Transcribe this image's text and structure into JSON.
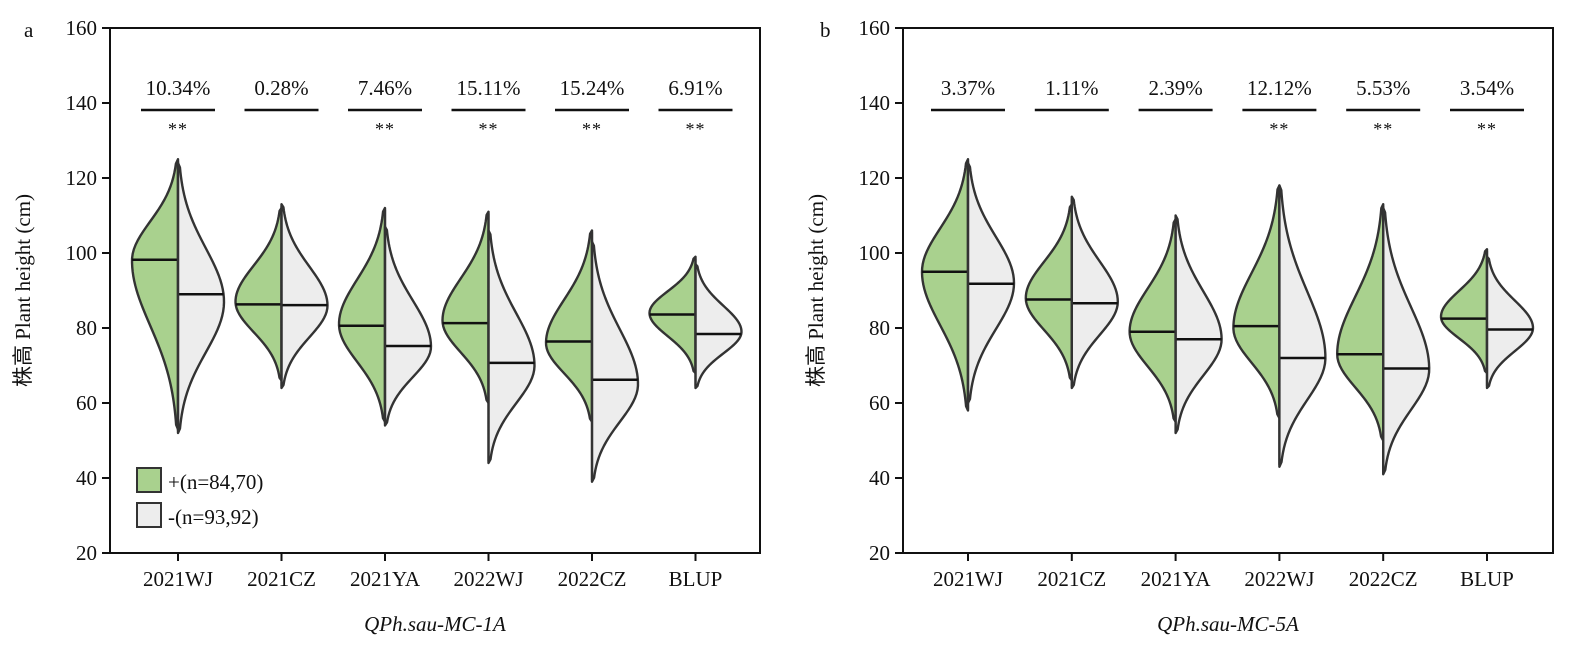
{
  "colors": {
    "plus_fill": "#a9d18e",
    "minus_fill": "#ededed",
    "outline": "#333333",
    "axis": "#111111"
  },
  "legend": {
    "plus_label": "+(n=84,70)",
    "minus_label": "-(n=93,92)"
  },
  "chart_data": [
    {
      "type": "violin",
      "panel": "a",
      "xlabel": "QPh.sau-MC-1A",
      "ylabel": "株高 Plant height (cm)",
      "ylim": [
        20,
        160
      ],
      "yticks": [
        "20",
        "40",
        "60",
        "80",
        "100",
        "120",
        "140",
        "160"
      ],
      "grid": false,
      "legend_position": "bottom-left",
      "series": [
        {
          "name": "+",
          "color": "#a9d18e"
        },
        {
          "name": "-",
          "color": "#ededed"
        }
      ],
      "categories": [
        {
          "label": "2021WJ",
          "pct": "10.34%",
          "sig": "**",
          "plus": {
            "min": 53,
            "max": 125,
            "mode": 98,
            "median": 98.2
          },
          "minus": {
            "min": 52,
            "max": 124,
            "mode": 87,
            "median": 89
          }
        },
        {
          "label": "2021CZ",
          "pct": "0.28%",
          "sig": "",
          "plus": {
            "min": 66,
            "max": 112,
            "mode": 87,
            "median": 86.3
          },
          "minus": {
            "min": 64,
            "max": 113,
            "mode": 86,
            "median": 86.1
          }
        },
        {
          "label": "2021YA",
          "pct": "7.46%",
          "sig": "**",
          "plus": {
            "min": 55,
            "max": 112,
            "mode": 81,
            "median": 80.6
          },
          "minus": {
            "min": 54,
            "max": 107,
            "mode": 75,
            "median": 75.2
          }
        },
        {
          "label": "2022WJ",
          "pct": "15.11%",
          "sig": "**",
          "plus": {
            "min": 60,
            "max": 111,
            "mode": 82,
            "median": 81.3
          },
          "minus": {
            "min": 44,
            "max": 106,
            "mode": 70,
            "median": 70.7
          }
        },
        {
          "label": "2022CZ",
          "pct": "15.24%",
          "sig": "**",
          "plus": {
            "min": 55,
            "max": 106,
            "mode": 76,
            "median": 76.4
          },
          "minus": {
            "min": 39,
            "max": 103,
            "mode": 65,
            "median": 66.2
          }
        },
        {
          "label": "BLUP",
          "pct": "6.91%",
          "sig": "**",
          "plus": {
            "min": 68,
            "max": 99,
            "mode": 84,
            "median": 83.6
          },
          "minus": {
            "min": 64,
            "max": 97,
            "mode": 79,
            "median": 78.4
          }
        }
      ]
    },
    {
      "type": "violin",
      "panel": "b",
      "xlabel": "QPh.sau-MC-5A",
      "ylabel": "株高 Plant height (cm)",
      "ylim": [
        20,
        160
      ],
      "yticks": [
        "20",
        "40",
        "60",
        "80",
        "100",
        "120",
        "140",
        "160"
      ],
      "grid": false,
      "legend_position": "none",
      "series": [
        {
          "name": "+",
          "color": "#a9d18e"
        },
        {
          "name": "-",
          "color": "#ededed"
        }
      ],
      "categories": [
        {
          "label": "2021WJ",
          "pct": "3.37%",
          "sig": "",
          "plus": {
            "min": 58,
            "max": 125,
            "mode": 95,
            "median": 95
          },
          "minus": {
            "min": 60,
            "max": 124,
            "mode": 92,
            "median": 91.8
          }
        },
        {
          "label": "2021CZ",
          "pct": "1.11%",
          "sig": "",
          "plus": {
            "min": 66,
            "max": 113,
            "mode": 88,
            "median": 87.6
          },
          "minus": {
            "min": 64,
            "max": 115,
            "mode": 87,
            "median": 86.6
          }
        },
        {
          "label": "2021YA",
          "pct": "2.39%",
          "sig": "",
          "plus": {
            "min": 55,
            "max": 109,
            "mode": 79,
            "median": 79
          },
          "minus": {
            "min": 52,
            "max": 110,
            "mode": 77,
            "median": 77
          }
        },
        {
          "label": "2022WJ",
          "pct": "12.12%",
          "sig": "**",
          "plus": {
            "min": 56,
            "max": 118,
            "mode": 80,
            "median": 80.5
          },
          "minus": {
            "min": 43,
            "max": 118,
            "mode": 72,
            "median": 72
          }
        },
        {
          "label": "2022CZ",
          "pct": "5.53%",
          "sig": "**",
          "plus": {
            "min": 50,
            "max": 113,
            "mode": 73,
            "median": 73
          },
          "minus": {
            "min": 41,
            "max": 112,
            "mode": 69,
            "median": 69.2
          }
        },
        {
          "label": "BLUP",
          "pct": "3.54%",
          "sig": "**",
          "plus": {
            "min": 68,
            "max": 101,
            "mode": 83,
            "median": 82.5
          },
          "minus": {
            "min": 64,
            "max": 99,
            "mode": 80,
            "median": 79.6
          }
        }
      ]
    }
  ]
}
